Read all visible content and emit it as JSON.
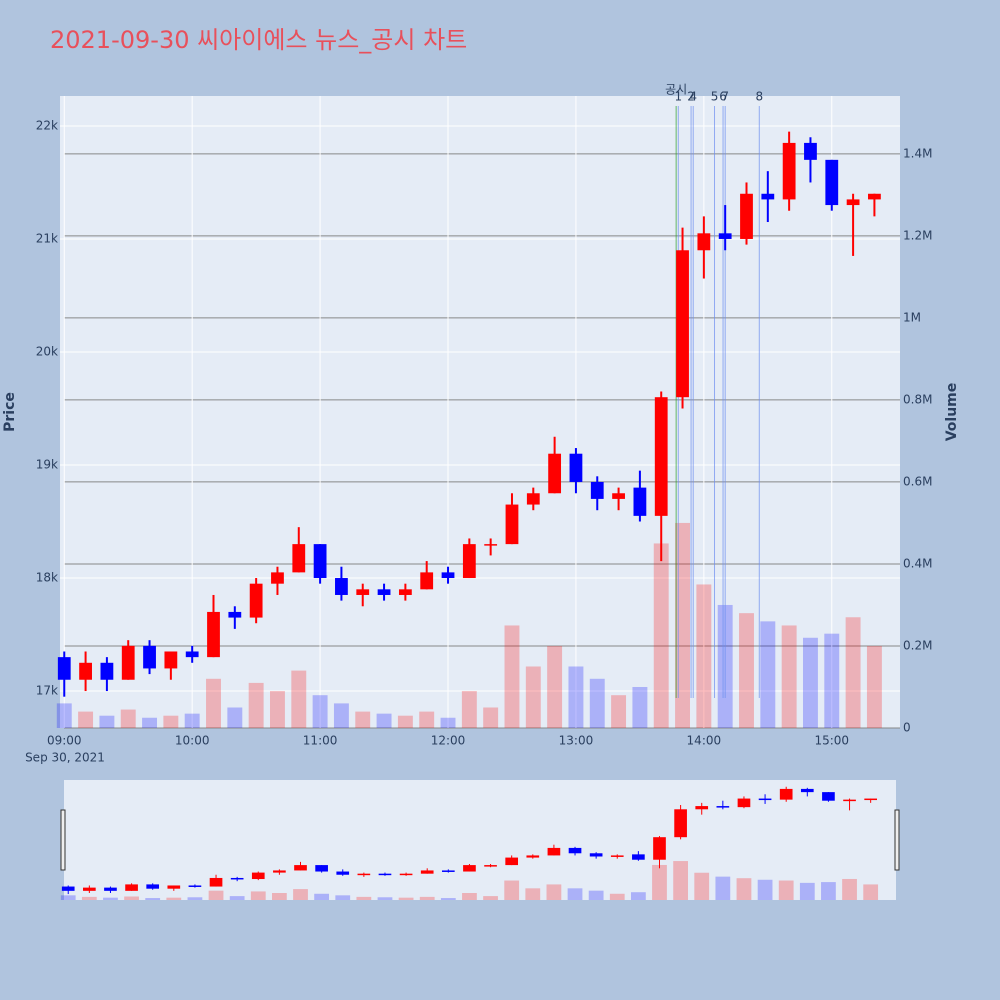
{
  "chart_data": {
    "type": "candlestick",
    "title": "2021-09-30 씨아이에스 뉴스_공시 차트",
    "y_title": "Price",
    "y2_title": "Volume",
    "x_date_label": "Sep 30, 2021",
    "x": [
      "09:00",
      "09:10",
      "09:20",
      "09:30",
      "09:40",
      "09:50",
      "10:00",
      "10:10",
      "10:20",
      "10:30",
      "10:40",
      "10:50",
      "11:00",
      "11:10",
      "11:20",
      "11:30",
      "11:40",
      "11:50",
      "12:00",
      "12:10",
      "12:20",
      "12:30",
      "12:40",
      "12:50",
      "13:00",
      "13:10",
      "13:20",
      "13:30",
      "13:40",
      "13:50",
      "14:00",
      "14:10",
      "14:20",
      "14:30",
      "14:40",
      "14:50",
      "15:00",
      "15:10",
      "15:20"
    ],
    "open": [
      17300,
      17100,
      17250,
      17100,
      17400,
      17200,
      17350,
      17300,
      17700,
      17650,
      17950,
      18050,
      18300,
      18000,
      17850,
      17900,
      17850,
      17900,
      18050,
      18000,
      18300,
      18300,
      18650,
      18750,
      19100,
      18850,
      18700,
      18800,
      18550,
      19600,
      20900,
      21050,
      21000,
      21400,
      21350,
      21850,
      21700,
      21300,
      21350
    ],
    "high": [
      17350,
      17350,
      17300,
      17450,
      17450,
      17350,
      17400,
      17850,
      17750,
      18000,
      18100,
      18450,
      18300,
      18100,
      17950,
      17950,
      17950,
      18150,
      18100,
      18350,
      18350,
      18750,
      18800,
      19250,
      19150,
      18900,
      18800,
      18950,
      19650,
      21100,
      21200,
      21300,
      21500,
      21600,
      21950,
      21900,
      21700,
      21400,
      21400
    ],
    "low": [
      16950,
      17000,
      17000,
      17100,
      17150,
      17100,
      17250,
      17300,
      17550,
      17600,
      17850,
      18050,
      17950,
      17800,
      17750,
      17800,
      17800,
      17900,
      17950,
      18000,
      18200,
      18300,
      18600,
      18750,
      18750,
      18600,
      18600,
      18500,
      18150,
      19500,
      20650,
      20900,
      20950,
      21150,
      21250,
      21500,
      21250,
      20850,
      21200
    ],
    "close": [
      17100,
      17250,
      17100,
      17400,
      17200,
      17350,
      17300,
      17700,
      17650,
      17950,
      18050,
      18300,
      18000,
      17850,
      17900,
      17850,
      17900,
      18050,
      18000,
      18300,
      18300,
      18650,
      18750,
      19100,
      18850,
      18700,
      18750,
      18550,
      19600,
      20900,
      21050,
      21000,
      21400,
      21350,
      21850,
      21700,
      21300,
      21350,
      21400
    ],
    "volume": [
      60000,
      40000,
      30000,
      45000,
      25000,
      30000,
      35000,
      120000,
      50000,
      110000,
      90000,
      140000,
      80000,
      60000,
      40000,
      35000,
      30000,
      40000,
      25000,
      90000,
      50000,
      250000,
      150000,
      200000,
      150000,
      120000,
      80000,
      100000,
      450000,
      500000,
      350000,
      300000,
      280000,
      260000,
      250000,
      220000,
      230000,
      270000,
      200000
    ],
    "increasing_color": "#ff0000",
    "decreasing_color": "#0000ff",
    "xlim": [
      "08:58",
      "15:32"
    ],
    "xticks": [
      "09:00",
      "10:00",
      "11:00",
      "12:00",
      "13:00",
      "14:00",
      "15:00"
    ],
    "ylim": [
      16673,
      22265
    ],
    "yticks": [
      {
        "value": 17000,
        "label": "17k"
      },
      {
        "value": 18000,
        "label": "18k"
      },
      {
        "value": 19000,
        "label": "19k"
      },
      {
        "value": 20000,
        "label": "20k"
      },
      {
        "value": 21000,
        "label": "21k"
      },
      {
        "value": 22000,
        "label": "22k"
      }
    ],
    "y2lim": [
      0,
      1541000
    ],
    "y2ticks": [
      0,
      {
        "value": 200000,
        "label": "0.2M"
      },
      {
        "value": 400000,
        "label": "0.4M"
      },
      {
        "value": 600000,
        "label": "0.6M"
      },
      {
        "value": 800000,
        "label": "0.8M"
      },
      {
        "value": 1000000,
        "label": "1M"
      },
      {
        "value": 1200000,
        "label": "1.2M"
      },
      {
        "value": 1400000,
        "label": "1.4M"
      }
    ],
    "annotations": [
      {
        "label": "공시",
        "x": "13:47",
        "color": "#2ca02c"
      },
      {
        "label": "1",
        "x": "13:48",
        "color": "#6c8ef0"
      },
      {
        "label": "2",
        "x": "13:54",
        "color": "#6c8ef0"
      },
      {
        "label": "4",
        "x": "13:55",
        "color": "#6c8ef0"
      },
      {
        "label": "5",
        "x": "14:05",
        "color": "#6c8ef0"
      },
      {
        "label": "6",
        "x": "14:09",
        "color": "#6c8ef0"
      },
      {
        "label": "7",
        "x": "14:10",
        "color": "#6c8ef0"
      },
      {
        "label": "8",
        "x": "14:26",
        "color": "#6c8ef0"
      }
    ],
    "grid": true,
    "range_slider": true
  }
}
